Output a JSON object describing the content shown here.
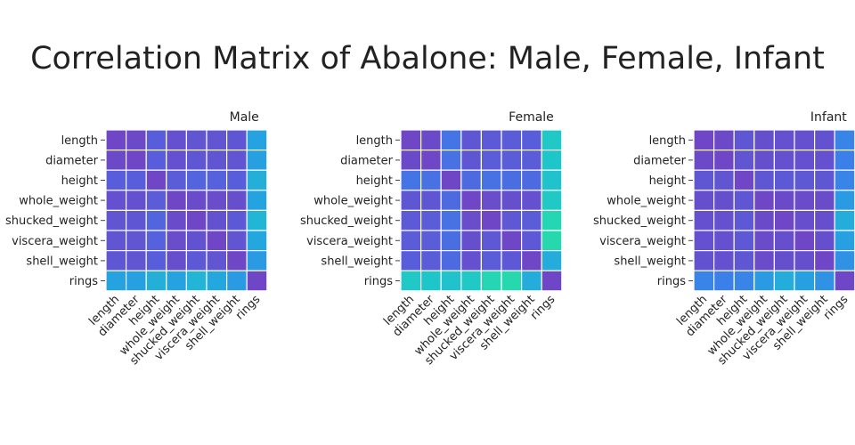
{
  "chart_data": {
    "type": "heatmap",
    "title": "Correlation Matrix of Abalone: Male, Female, Infant",
    "variables": [
      "length",
      "diameter",
      "height",
      "whole_weight",
      "shucked_weight",
      "viscera_weight",
      "shell_weight",
      "rings"
    ],
    "color_scale": {
      "stops": [
        "#2be49c",
        "#1fc6c9",
        "#25a3e0",
        "#3a80e8",
        "#5561dd",
        "#6f46c5"
      ],
      "domain": [
        0.0,
        1.0
      ]
    },
    "panels": [
      {
        "name": "Male",
        "matrix": [
          [
            1.0,
            0.98,
            0.82,
            0.92,
            0.89,
            0.89,
            0.88,
            0.4
          ],
          [
            0.98,
            1.0,
            0.82,
            0.92,
            0.88,
            0.89,
            0.89,
            0.42
          ],
          [
            0.82,
            0.82,
            1.0,
            0.84,
            0.78,
            0.8,
            0.82,
            0.33
          ],
          [
            0.92,
            0.92,
            0.84,
            1.0,
            0.96,
            0.95,
            0.94,
            0.4
          ],
          [
            0.89,
            0.88,
            0.78,
            0.96,
            1.0,
            0.91,
            0.86,
            0.3
          ],
          [
            0.89,
            0.89,
            0.8,
            0.95,
            0.91,
            1.0,
            0.89,
            0.38
          ],
          [
            0.88,
            0.89,
            0.82,
            0.94,
            0.86,
            0.89,
            1.0,
            0.45
          ],
          [
            0.4,
            0.42,
            0.33,
            0.4,
            0.3,
            0.38,
            0.45,
            1.0
          ]
        ]
      },
      {
        "name": "Female",
        "matrix": [
          [
            1.0,
            0.97,
            0.68,
            0.88,
            0.85,
            0.84,
            0.82,
            0.18
          ],
          [
            0.97,
            1.0,
            0.7,
            0.88,
            0.84,
            0.84,
            0.84,
            0.2
          ],
          [
            0.68,
            0.7,
            1.0,
            0.74,
            0.7,
            0.72,
            0.74,
            0.22
          ],
          [
            0.88,
            0.88,
            0.74,
            1.0,
            0.95,
            0.93,
            0.92,
            0.18
          ],
          [
            0.85,
            0.84,
            0.7,
            0.95,
            1.0,
            0.87,
            0.84,
            0.1
          ],
          [
            0.84,
            0.84,
            0.72,
            0.93,
            0.87,
            1.0,
            0.86,
            0.08
          ],
          [
            0.82,
            0.84,
            0.74,
            0.92,
            0.84,
            0.86,
            1.0,
            0.35
          ],
          [
            0.18,
            0.2,
            0.22,
            0.18,
            0.1,
            0.08,
            0.35,
            1.0
          ]
        ]
      },
      {
        "name": "Infant",
        "matrix": [
          [
            1.0,
            0.98,
            0.88,
            0.93,
            0.92,
            0.92,
            0.91,
            0.58
          ],
          [
            0.98,
            1.0,
            0.89,
            0.93,
            0.92,
            0.92,
            0.92,
            0.6
          ],
          [
            0.88,
            0.89,
            1.0,
            0.88,
            0.86,
            0.87,
            0.88,
            0.58
          ],
          [
            0.93,
            0.93,
            0.88,
            1.0,
            0.97,
            0.96,
            0.96,
            0.45
          ],
          [
            0.92,
            0.92,
            0.86,
            0.97,
            1.0,
            0.94,
            0.93,
            0.35
          ],
          [
            0.92,
            0.92,
            0.87,
            0.96,
            0.94,
            1.0,
            0.93,
            0.42
          ],
          [
            0.91,
            0.92,
            0.88,
            0.96,
            0.93,
            0.93,
            1.0,
            0.5
          ],
          [
            0.58,
            0.6,
            0.58,
            0.45,
            0.35,
            0.42,
            0.5,
            1.0
          ]
        ]
      }
    ]
  }
}
